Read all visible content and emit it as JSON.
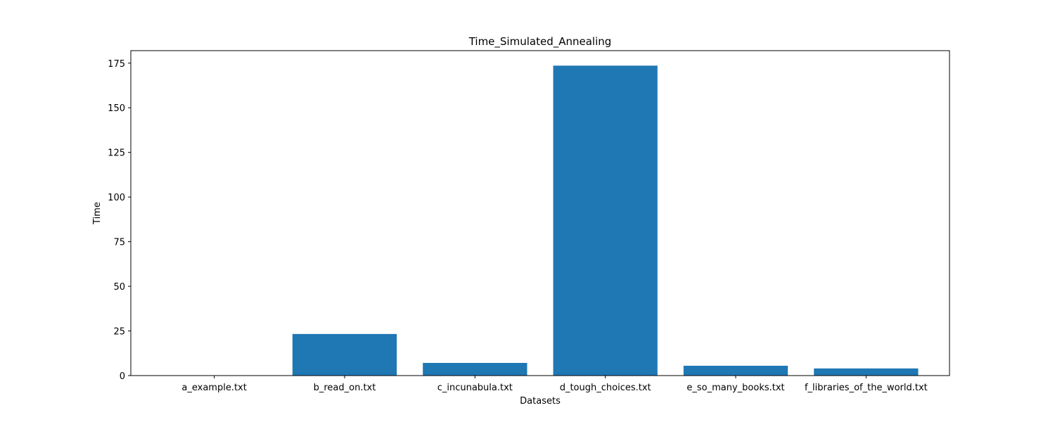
{
  "chart_data": {
    "type": "bar",
    "title": "Time_Simulated_Annealing",
    "xlabel": "Datasets",
    "ylabel": "Time",
    "categories": [
      "a_example.txt",
      "b_read_on.txt",
      "c_incunabula.txt",
      "d_tough_choices.txt",
      "e_so_many_books.txt",
      "f_libraries_of_the_world.txt"
    ],
    "values": [
      0.01,
      23.3,
      7.1,
      173.6,
      5.5,
      4.0
    ],
    "ylim": [
      0,
      182
    ],
    "yticks": [
      0,
      25,
      50,
      75,
      100,
      125,
      150,
      175
    ],
    "bar_color": "#1f77b4",
    "grid": false,
    "legend": "none"
  }
}
